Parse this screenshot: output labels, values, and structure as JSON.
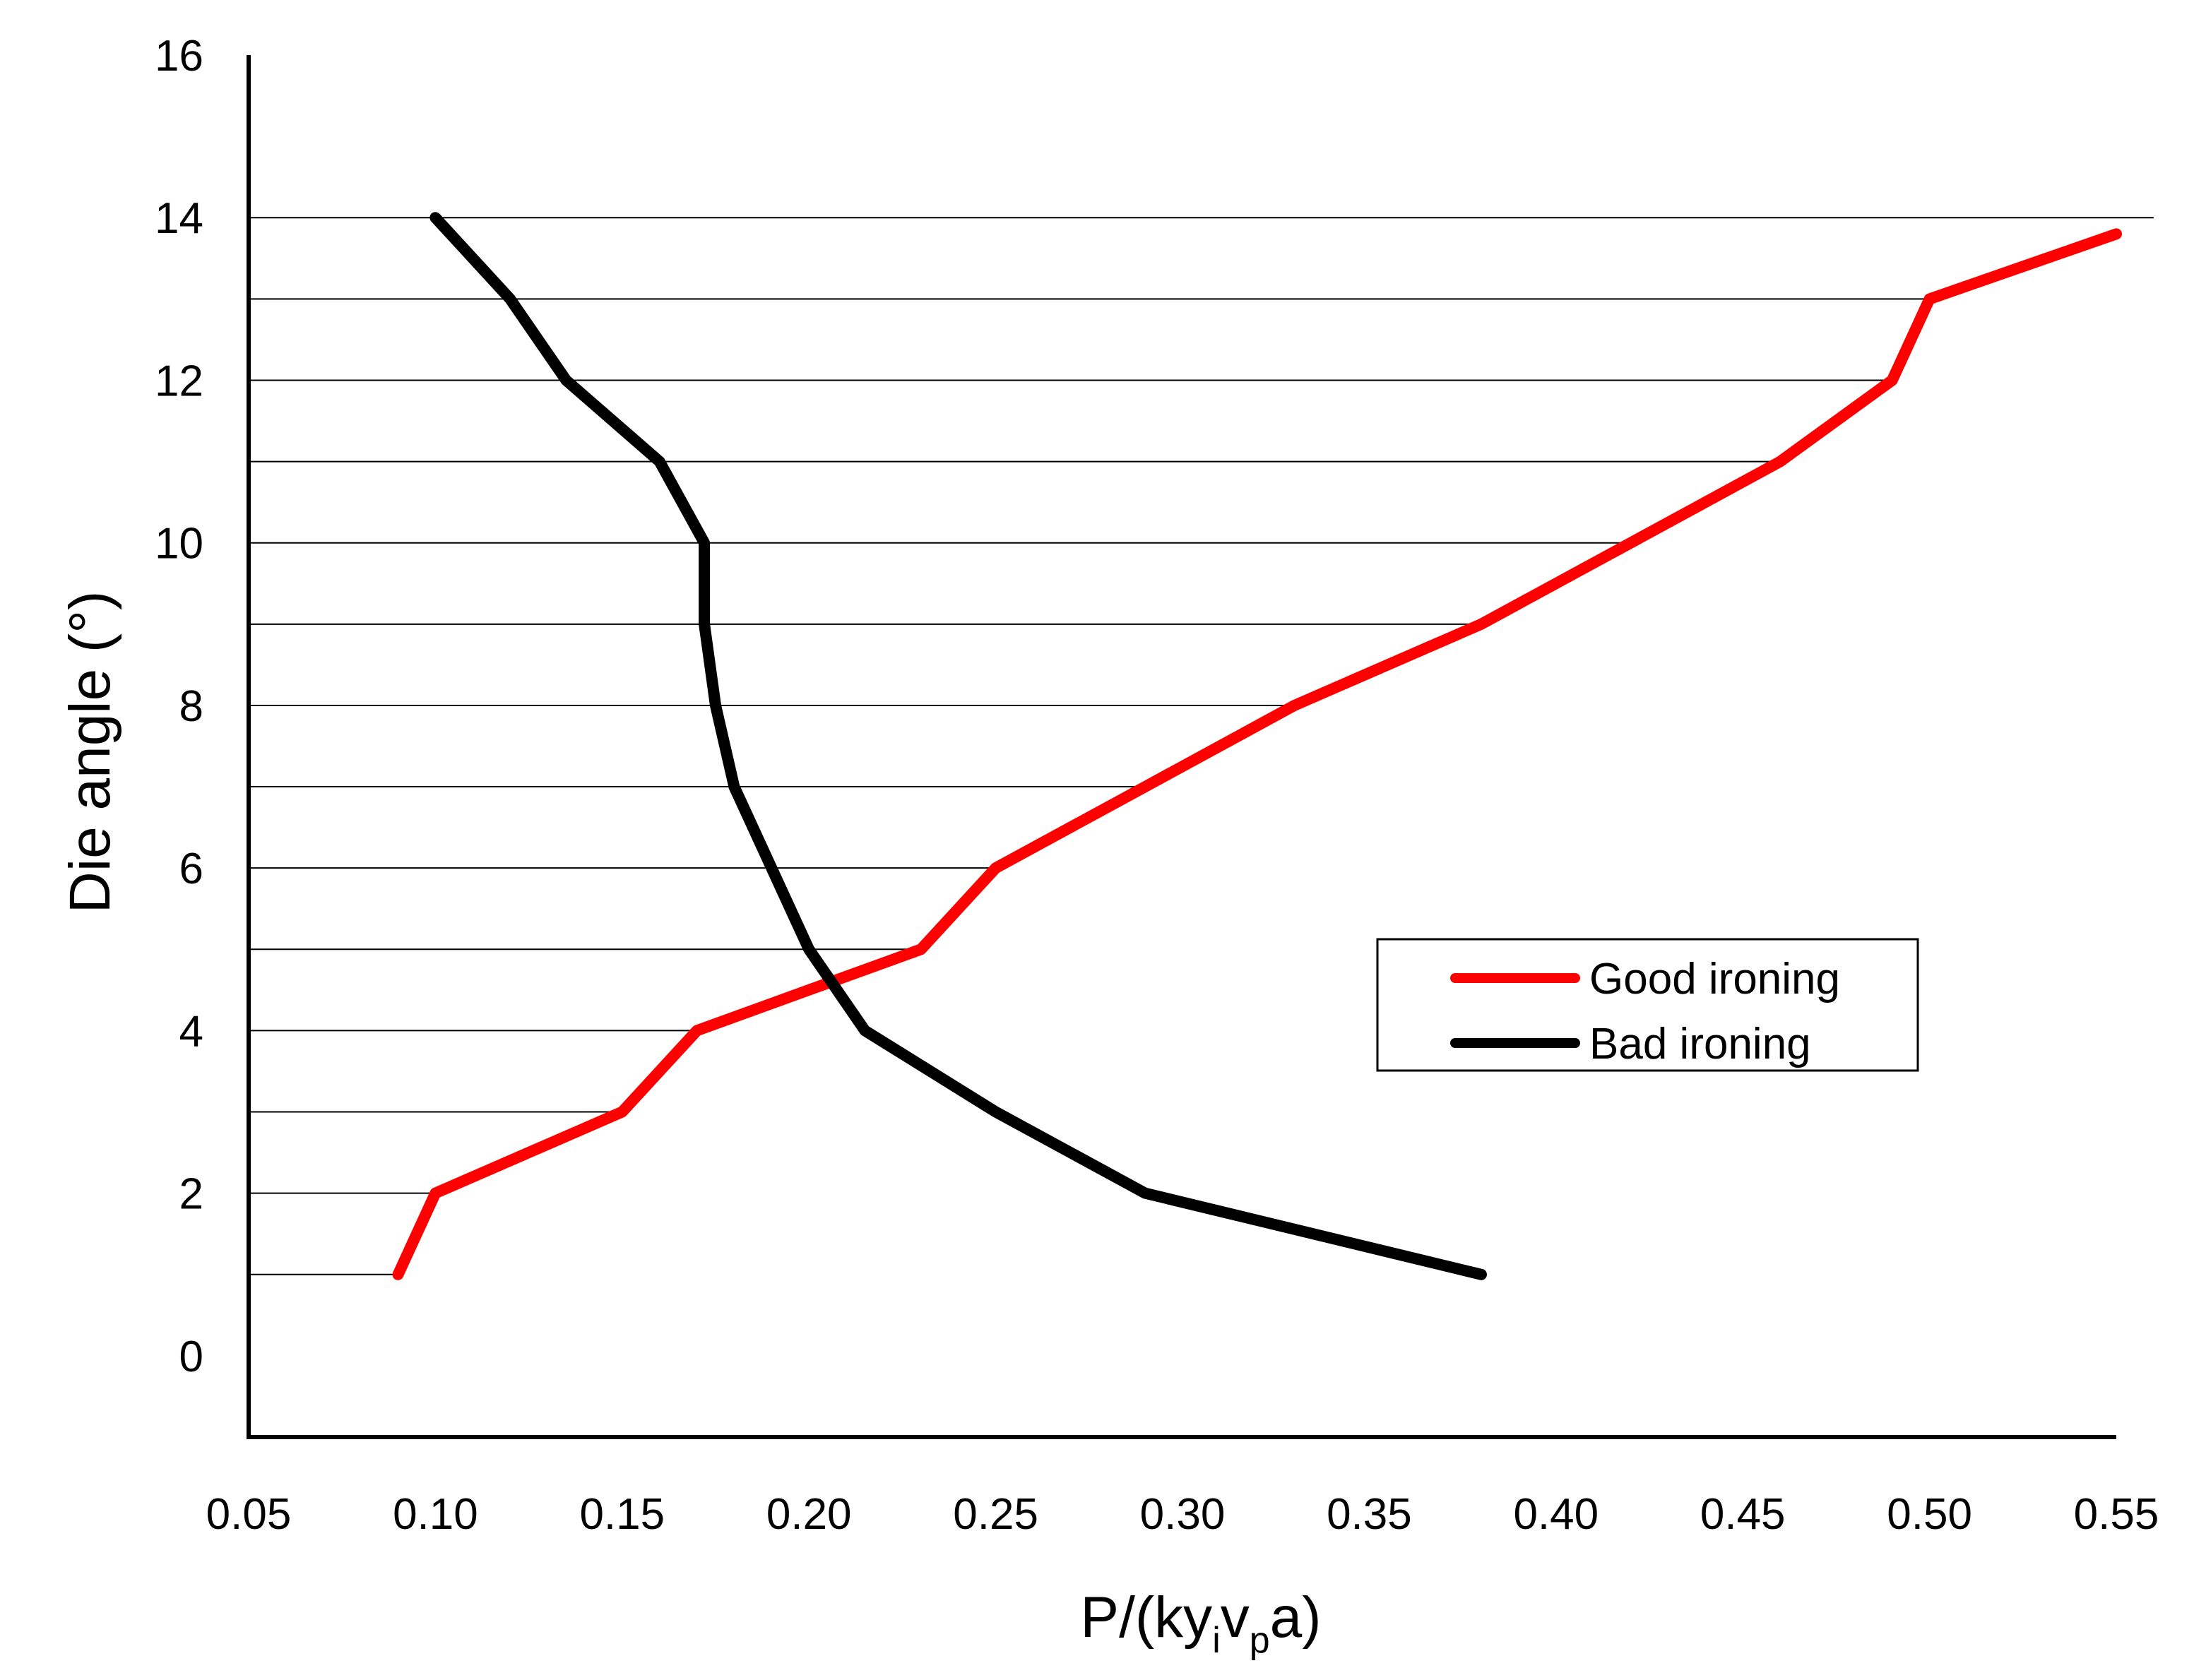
{
  "chart_data": {
    "type": "line",
    "title": "",
    "xlabel": {
      "main": "P/(ky",
      "sub1": "i",
      "mid": "v",
      "sub2": "p",
      "tail": "a)"
    },
    "ylabel": "Die angle (°)",
    "xlim": [
      0.05,
      0.55
    ],
    "ylim": [
      -1,
      16
    ],
    "xticks": [
      "0.05",
      "0.10",
      "0.15",
      "0.20",
      "0.25",
      "0.30",
      "0.35",
      "0.40",
      "0.45",
      "0.50",
      "0.55"
    ],
    "xtick_values": [
      0.05,
      0.1,
      0.15,
      0.2,
      0.25,
      0.3,
      0.35,
      0.4,
      0.45,
      0.5,
      0.55
    ],
    "yticks": [
      "0",
      "2",
      "4",
      "6",
      "8",
      "10",
      "12",
      "14",
      "16"
    ],
    "ytick_values": [
      0,
      2,
      4,
      6,
      8,
      10,
      12,
      14,
      16
    ],
    "grid": "horizontal at each integer die angle 1-14",
    "gridlines": [
      {
        "y": 1,
        "x_end": 0.09
      },
      {
        "y": 2,
        "x_end": 0.1
      },
      {
        "y": 3,
        "x_end": 0.15
      },
      {
        "y": 4,
        "x_end": 0.17
      },
      {
        "y": 5,
        "x_end": 0.23
      },
      {
        "y": 6,
        "x_end": 0.25
      },
      {
        "y": 7,
        "x_end": 0.29
      },
      {
        "y": 8,
        "x_end": 0.33
      },
      {
        "y": 9,
        "x_end": 0.38
      },
      {
        "y": 10,
        "x_end": 0.42
      },
      {
        "y": 11,
        "x_end": 0.46
      },
      {
        "y": 12,
        "x_end": 0.49
      },
      {
        "y": 13,
        "x_end": 0.5
      },
      {
        "y": 14,
        "x_end": 0.56
      }
    ],
    "series": [
      {
        "name": "Good ironing",
        "color": "#ff0000",
        "x": [
          0.09,
          0.1,
          0.15,
          0.17,
          0.23,
          0.25,
          0.29,
          0.33,
          0.38,
          0.42,
          0.46,
          0.49,
          0.5,
          0.55
        ],
        "y": [
          1,
          2,
          3,
          4,
          5,
          6,
          7,
          8,
          9,
          10,
          11,
          12,
          13,
          13.8
        ]
      },
      {
        "name": "Bad ironing",
        "color": "#000000",
        "x": [
          0.38,
          0.29,
          0.25,
          0.215,
          0.2,
          0.19,
          0.18,
          0.175,
          0.172,
          0.172,
          0.16,
          0.135,
          0.12,
          0.1
        ],
        "y": [
          1,
          2,
          3,
          4,
          5,
          6,
          7,
          8,
          9,
          10,
          11,
          12,
          13,
          14
        ]
      }
    ],
    "legend": {
      "position": "center-right",
      "entries": [
        "Good ironing",
        "Bad ironing"
      ]
    }
  }
}
